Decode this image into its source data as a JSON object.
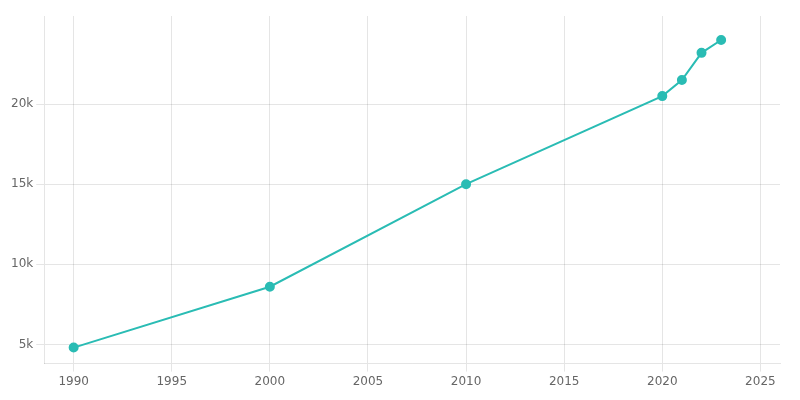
{
  "chart_data": {
    "type": "line",
    "x": [
      1990,
      2000,
      2010,
      2020,
      2021,
      2022,
      2023
    ],
    "values": [
      4800,
      8600,
      15000,
      20500,
      21500,
      23200,
      24000
    ],
    "color": "#2abcb4",
    "marker": "circle",
    "line_style": "solid",
    "xlim": [
      1988.5,
      2026
    ],
    "xticks": [
      1990,
      1995,
      2000,
      2005,
      2010,
      2015,
      2020,
      2025
    ],
    "ylim": [
      3800,
      25500
    ],
    "yticks": [
      {
        "value": 5000,
        "label": "5k"
      },
      {
        "value": 10000,
        "label": "10k"
      },
      {
        "value": 15000,
        "label": "15k"
      },
      {
        "value": 20000,
        "label": "20k"
      }
    ],
    "grid": true
  }
}
